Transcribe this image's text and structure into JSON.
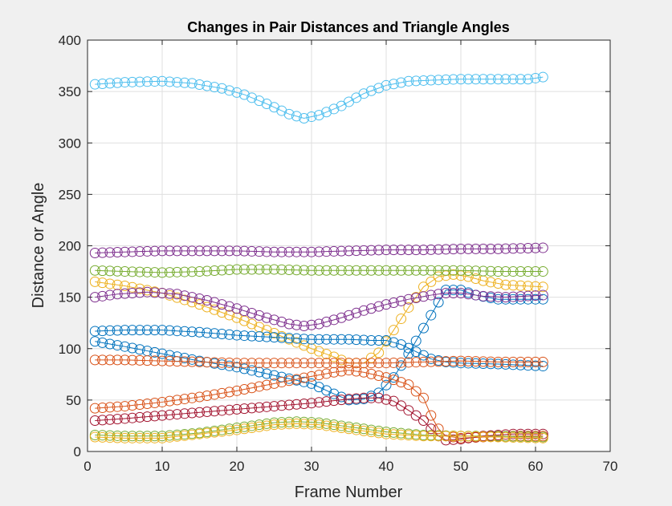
{
  "chart_data": {
    "type": "scatter",
    "title": "Changes in Pair Distances and Triangle Angles",
    "xlabel": "Frame Number",
    "ylabel": "Distance or Angle",
    "xlim": [
      0,
      70
    ],
    "ylim": [
      0,
      400
    ],
    "xticks": [
      0,
      10,
      20,
      30,
      40,
      50,
      60,
      70
    ],
    "yticks": [
      0,
      50,
      100,
      150,
      200,
      250,
      300,
      350,
      400
    ],
    "grid": true,
    "legend": "none",
    "marker": "circle",
    "line_connected": true,
    "frames": {
      "start": 1,
      "end": 61,
      "step": 1
    },
    "series": [
      {
        "color": "#0072bd",
        "keypoints": [
          [
            1,
            107
          ],
          [
            5,
            102
          ],
          [
            10,
            95
          ],
          [
            15,
            88
          ],
          [
            20,
            82
          ],
          [
            25,
            74
          ],
          [
            30,
            66
          ],
          [
            33,
            56
          ],
          [
            35,
            50
          ],
          [
            37,
            51
          ],
          [
            39,
            57
          ],
          [
            41,
            72
          ],
          [
            43,
            95
          ],
          [
            45,
            120
          ],
          [
            47,
            145
          ],
          [
            48,
            157
          ],
          [
            50,
            157
          ],
          [
            52,
            152
          ],
          [
            55,
            148
          ],
          [
            58,
            148
          ],
          [
            61,
            148
          ]
        ]
      },
      {
        "color": "#d95319",
        "keypoints": [
          [
            1,
            42
          ],
          [
            5,
            44
          ],
          [
            10,
            48
          ],
          [
            15,
            53
          ],
          [
            20,
            59
          ],
          [
            25,
            66
          ],
          [
            30,
            73
          ],
          [
            33,
            77
          ],
          [
            35,
            79
          ],
          [
            37,
            77
          ],
          [
            40,
            72
          ],
          [
            43,
            65
          ],
          [
            45,
            52
          ],
          [
            46,
            35
          ],
          [
            47,
            22
          ],
          [
            48,
            15
          ],
          [
            50,
            13
          ],
          [
            53,
            14
          ],
          [
            57,
            15
          ],
          [
            61,
            15
          ]
        ]
      },
      {
        "color": "#edb120",
        "keypoints": [
          [
            1,
            165
          ],
          [
            5,
            161
          ],
          [
            10,
            154
          ],
          [
            15,
            143
          ],
          [
            20,
            130
          ],
          [
            25,
            115
          ],
          [
            30,
            100
          ],
          [
            33,
            92
          ],
          [
            35,
            86
          ],
          [
            37,
            86
          ],
          [
            39,
            96
          ],
          [
            41,
            118
          ],
          [
            43,
            140
          ],
          [
            45,
            160
          ],
          [
            47,
            170
          ],
          [
            49,
            172
          ],
          [
            51,
            170
          ],
          [
            53,
            166
          ],
          [
            56,
            162
          ],
          [
            61,
            160
          ]
        ]
      },
      {
        "color": "#7e2f8e",
        "keypoints": [
          [
            1,
            150
          ],
          [
            4,
            153
          ],
          [
            8,
            155
          ],
          [
            12,
            153
          ],
          [
            16,
            147
          ],
          [
            20,
            139
          ],
          [
            24,
            130
          ],
          [
            27,
            124
          ],
          [
            29,
            122
          ],
          [
            31,
            124
          ],
          [
            34,
            130
          ],
          [
            37,
            137
          ],
          [
            40,
            143
          ],
          [
            43,
            148
          ],
          [
            46,
            152
          ],
          [
            48,
            154
          ],
          [
            50,
            154
          ],
          [
            53,
            151
          ],
          [
            56,
            150
          ],
          [
            61,
            152
          ]
        ]
      },
      {
        "color": "#77ac30",
        "keypoints": [
          [
            1,
            16
          ],
          [
            5,
            15
          ],
          [
            10,
            15
          ],
          [
            15,
            18
          ],
          [
            20,
            23
          ],
          [
            25,
            28
          ],
          [
            28,
            29
          ],
          [
            31,
            28
          ],
          [
            35,
            24
          ],
          [
            40,
            19
          ],
          [
            45,
            16
          ],
          [
            50,
            15
          ],
          [
            55,
            15
          ],
          [
            61,
            14
          ]
        ]
      },
      {
        "color": "#4dbeee",
        "keypoints": [
          [
            1,
            357
          ],
          [
            5,
            359
          ],
          [
            10,
            360
          ],
          [
            14,
            358
          ],
          [
            18,
            353
          ],
          [
            21,
            347
          ],
          [
            24,
            338
          ],
          [
            27,
            328
          ],
          [
            29,
            324
          ],
          [
            31,
            327
          ],
          [
            34,
            336
          ],
          [
            37,
            348
          ],
          [
            40,
            356
          ],
          [
            43,
            360
          ],
          [
            46,
            361
          ],
          [
            50,
            362
          ],
          [
            55,
            362
          ],
          [
            59,
            362
          ],
          [
            61,
            364
          ]
        ]
      },
      {
        "color": "#a2142f",
        "keypoints": [
          [
            1,
            30
          ],
          [
            5,
            32
          ],
          [
            10,
            35
          ],
          [
            15,
            38
          ],
          [
            20,
            41
          ],
          [
            25,
            44
          ],
          [
            30,
            47
          ],
          [
            35,
            51
          ],
          [
            37,
            52
          ],
          [
            39,
            52
          ],
          [
            41,
            49
          ],
          [
            43,
            40
          ],
          [
            45,
            30
          ],
          [
            46,
            22
          ],
          [
            47,
            15
          ],
          [
            48,
            11
          ],
          [
            50,
            12
          ],
          [
            53,
            15
          ],
          [
            57,
            17
          ],
          [
            61,
            17
          ]
        ]
      },
      {
        "color": "#0072bd",
        "keypoints": [
          [
            1,
            117
          ],
          [
            5,
            118
          ],
          [
            10,
            118
          ],
          [
            15,
            116
          ],
          [
            20,
            113
          ],
          [
            25,
            111
          ],
          [
            30,
            109
          ],
          [
            35,
            109
          ],
          [
            38,
            108
          ],
          [
            40,
            108
          ],
          [
            42,
            104
          ],
          [
            44,
            97
          ],
          [
            46,
            90
          ],
          [
            48,
            87
          ],
          [
            50,
            86
          ],
          [
            55,
            85
          ],
          [
            61,
            83
          ]
        ]
      },
      {
        "color": "#d95319",
        "keypoints": [
          [
            1,
            89
          ],
          [
            5,
            89
          ],
          [
            10,
            88
          ],
          [
            15,
            87
          ],
          [
            20,
            86
          ],
          [
            25,
            86
          ],
          [
            30,
            86
          ],
          [
            35,
            86
          ],
          [
            40,
            86
          ],
          [
            45,
            87
          ],
          [
            50,
            88
          ],
          [
            55,
            87
          ],
          [
            61,
            87
          ]
        ]
      },
      {
        "color": "#edb120",
        "keypoints": [
          [
            1,
            14
          ],
          [
            5,
            13
          ],
          [
            10,
            13
          ],
          [
            15,
            17
          ],
          [
            20,
            21
          ],
          [
            25,
            26
          ],
          [
            28,
            27
          ],
          [
            31,
            26
          ],
          [
            35,
            22
          ],
          [
            40,
            17
          ],
          [
            45,
            15
          ],
          [
            50,
            15
          ],
          [
            55,
            14
          ],
          [
            61,
            13
          ]
        ]
      },
      {
        "color": "#7e2f8e",
        "keypoints": [
          [
            1,
            193
          ],
          [
            5,
            194
          ],
          [
            10,
            195
          ],
          [
            15,
            195
          ],
          [
            20,
            195
          ],
          [
            25,
            194
          ],
          [
            30,
            194
          ],
          [
            35,
            195
          ],
          [
            40,
            196
          ],
          [
            45,
            196
          ],
          [
            50,
            197
          ],
          [
            55,
            197
          ],
          [
            61,
            198
          ]
        ]
      },
      {
        "color": "#77ac30",
        "keypoints": [
          [
            1,
            176
          ],
          [
            5,
            175
          ],
          [
            10,
            174
          ],
          [
            15,
            175
          ],
          [
            20,
            177
          ],
          [
            25,
            177
          ],
          [
            30,
            176
          ],
          [
            35,
            176
          ],
          [
            40,
            176
          ],
          [
            45,
            176
          ],
          [
            50,
            176
          ],
          [
            55,
            175
          ],
          [
            61,
            175
          ]
        ]
      }
    ]
  }
}
